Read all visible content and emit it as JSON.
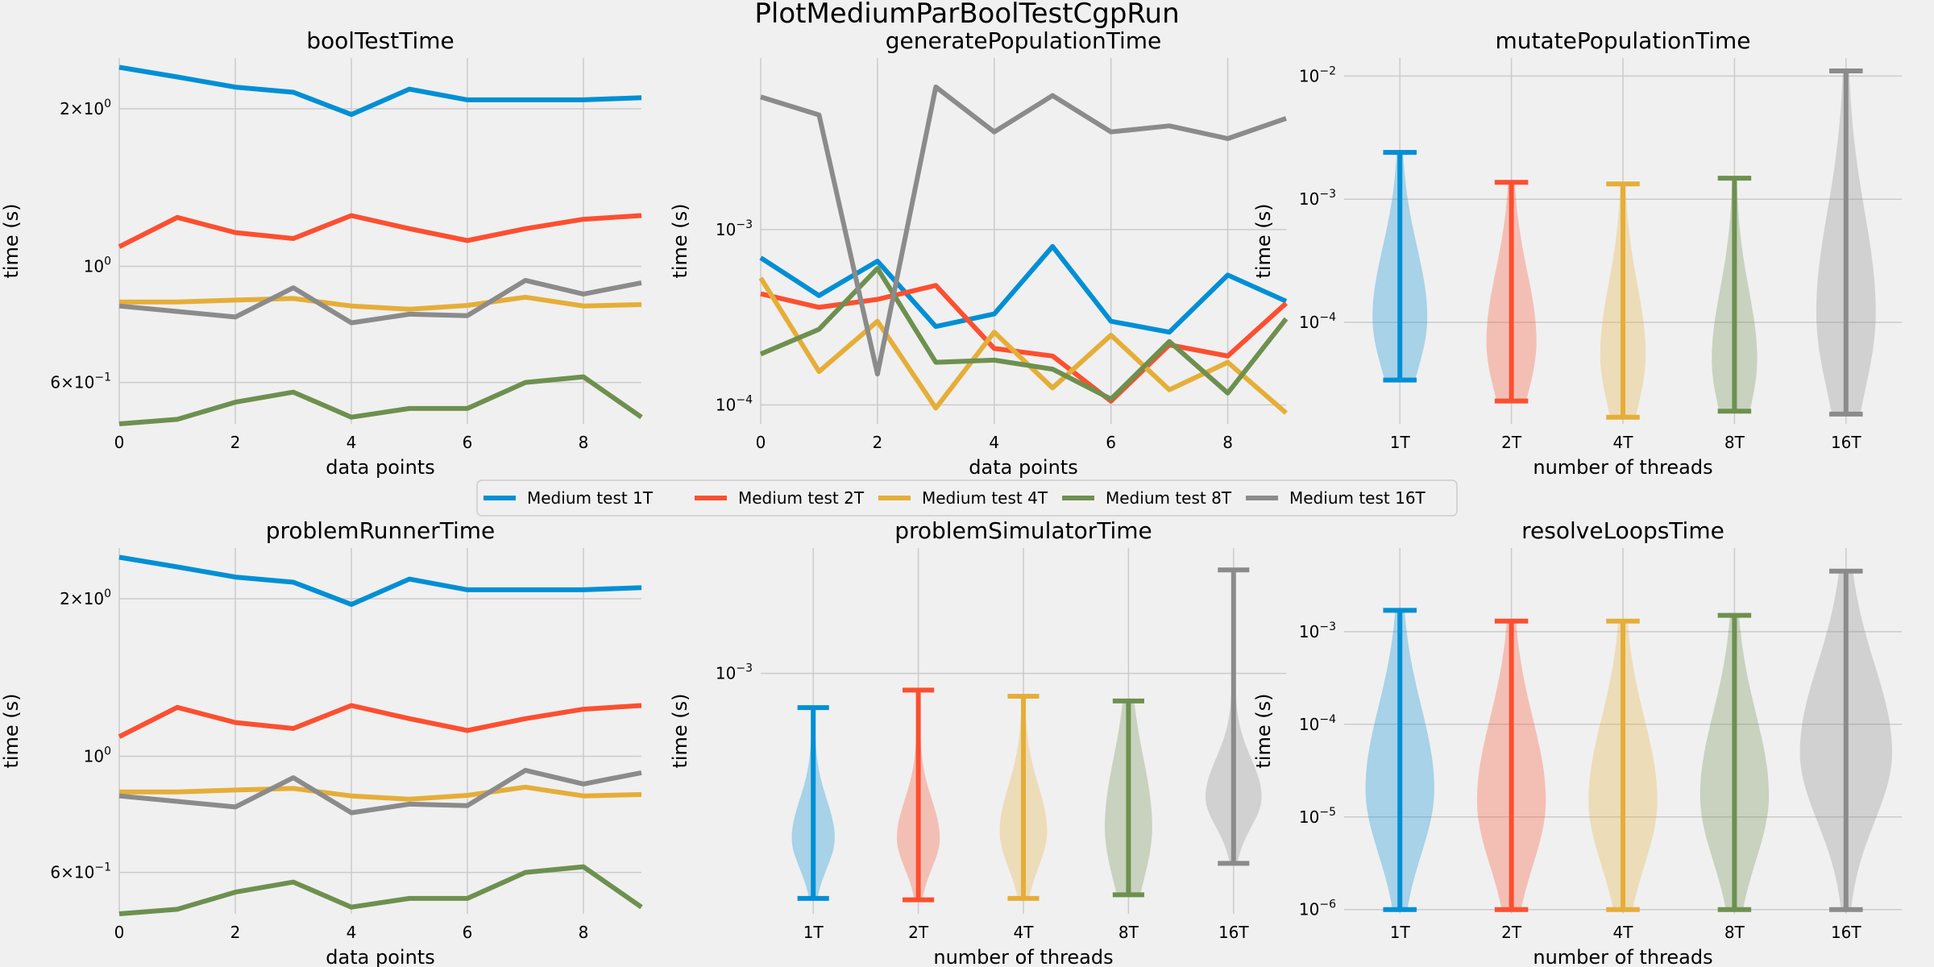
{
  "figure": {
    "suptitle": "PlotMediumParBoolTestCgpRun",
    "legend": {
      "placement": "center",
      "entries": [
        "Medium test 1T",
        "Medium test 2T",
        "Medium test 4T",
        "Medium test 8T",
        "Medium test 16T"
      ],
      "colors": [
        "#008fd5",
        "#fc4f30",
        "#e5ae38",
        "#6d904f",
        "#8b8b8b"
      ]
    }
  },
  "chart_data": [
    {
      "type": "line",
      "title": "boolTestTime",
      "xlabel": "data points",
      "ylabel": "time (s)",
      "scale": "log",
      "xlim": [
        0,
        9
      ],
      "ylim": [
        0.5,
        2.5
      ],
      "xticks": [
        0,
        2,
        4,
        6,
        8
      ],
      "yticks": [
        {
          "v": 0.6,
          "m": "6",
          "e": "−1"
        },
        {
          "v": 1.0,
          "m": "",
          "e": "0"
        },
        {
          "v": 2.0,
          "m": "2",
          "e": "0"
        }
      ],
      "x": [
        0,
        1,
        2,
        3,
        4,
        5,
        6,
        7,
        8,
        9
      ],
      "series": [
        {
          "name": "Medium test 1T",
          "values": [
            2.4,
            2.3,
            2.2,
            2.15,
            1.95,
            2.18,
            2.08,
            2.08,
            2.08,
            2.1
          ]
        },
        {
          "name": "Medium test 2T",
          "values": [
            1.09,
            1.24,
            1.16,
            1.13,
            1.25,
            1.18,
            1.12,
            1.18,
            1.23,
            1.25
          ]
        },
        {
          "name": "Medium test 4T",
          "values": [
            0.855,
            0.855,
            0.862,
            0.868,
            0.84,
            0.828,
            0.842,
            0.873,
            0.84,
            0.845
          ]
        },
        {
          "name": "Medium test 8T",
          "values": [
            0.5,
            0.51,
            0.55,
            0.575,
            0.515,
            0.535,
            0.535,
            0.6,
            0.615,
            0.515
          ]
        },
        {
          "name": "Medium test 16T",
          "values": [
            0.84,
            0.82,
            0.8,
            0.91,
            0.78,
            0.81,
            0.805,
            0.94,
            0.885,
            0.93
          ]
        }
      ]
    },
    {
      "type": "line",
      "title": "generatePopulationTime",
      "xlabel": "data points",
      "ylabel": "time (s)",
      "scale": "log",
      "xlim": [
        0,
        9
      ],
      "ylim": [
        7.8e-05,
        0.0095
      ],
      "xticks": [
        0,
        2,
        4,
        6,
        8
      ],
      "yticks": [
        {
          "v": 0.0001,
          "m": "",
          "e": "−4"
        },
        {
          "v": 0.001,
          "m": "",
          "e": "−3"
        }
      ],
      "x": [
        0,
        1,
        2,
        3,
        4,
        5,
        6,
        7,
        8,
        9
      ],
      "series": [
        {
          "name": "Medium test 1T",
          "values": [
            0.00069,
            0.00042,
            0.00066,
            0.00028,
            0.00033,
            0.0008,
            0.0003,
            0.00026,
            0.00055,
            0.00039
          ]
        },
        {
          "name": "Medium test 2T",
          "values": [
            0.00043,
            0.00036,
            0.0004,
            0.00048,
            0.00021,
            0.00019,
            0.000105,
            0.00022,
            0.00019,
            0.00038
          ]
        },
        {
          "name": "Medium test 4T",
          "values": [
            0.00053,
            0.000155,
            0.0003,
            9.6e-05,
            0.00026,
            0.000125,
            0.00025,
            0.000122,
            0.000175,
            9e-05
          ]
        },
        {
          "name": "Medium test 8T",
          "values": [
            0.000195,
            0.00027,
            0.0006,
            0.000175,
            0.00018,
            0.00016,
            0.000108,
            0.00023,
            0.000117,
            0.00031
          ]
        },
        {
          "name": "Medium test 16T",
          "values": [
            0.0057,
            0.0045,
            0.00015,
            0.0065,
            0.0036,
            0.0058,
            0.0036,
            0.0039,
            0.0033,
            0.0043
          ]
        }
      ]
    },
    {
      "type": "violin",
      "title": "mutatePopulationTime",
      "xlabel": "number of threads",
      "ylabel": "time (s)",
      "scale": "log",
      "ylim": [
        1.5e-05,
        0.014
      ],
      "yticks": [
        {
          "v": 0.0001,
          "m": "",
          "e": "−4"
        },
        {
          "v": 0.001,
          "m": "",
          "e": "−3"
        },
        {
          "v": 0.01,
          "m": "",
          "e": "−2"
        }
      ],
      "categories": [
        "1T",
        "2T",
        "4T",
        "8T",
        "16T"
      ],
      "violins": [
        {
          "min": 3.4e-05,
          "max": 0.0024,
          "center": 0.00011,
          "spread": 0.45,
          "width": 0.55
        },
        {
          "min": 2.3e-05,
          "max": 0.00137,
          "center": 7e-05,
          "spread": 0.45,
          "width": 0.5
        },
        {
          "min": 1.7e-05,
          "max": 0.00133,
          "center": 5.5e-05,
          "spread": 0.45,
          "width": 0.45
        },
        {
          "min": 1.9e-05,
          "max": 0.00148,
          "center": 5e-05,
          "spread": 0.45,
          "width": 0.45
        },
        {
          "min": 1.8e-05,
          "max": 0.011,
          "center": 0.00012,
          "spread": 0.65,
          "width": 0.6
        }
      ]
    },
    {
      "type": "line",
      "title": "problemRunnerTime",
      "xlabel": "data points",
      "ylabel": "time (s)",
      "scale": "log",
      "xlim": [
        0,
        9
      ],
      "ylim": [
        0.5,
        2.5
      ],
      "xticks": [
        0,
        2,
        4,
        6,
        8
      ],
      "yticks": [
        {
          "v": 0.6,
          "m": "6",
          "e": "−1"
        },
        {
          "v": 1.0,
          "m": "",
          "e": "0"
        },
        {
          "v": 2.0,
          "m": "2",
          "e": "0"
        }
      ],
      "x": [
        0,
        1,
        2,
        3,
        4,
        5,
        6,
        7,
        8,
        9
      ],
      "series": [
        {
          "name": "Medium test 1T",
          "values": [
            2.4,
            2.3,
            2.2,
            2.15,
            1.95,
            2.18,
            2.08,
            2.08,
            2.08,
            2.1
          ]
        },
        {
          "name": "Medium test 2T",
          "values": [
            1.09,
            1.24,
            1.16,
            1.13,
            1.25,
            1.18,
            1.12,
            1.18,
            1.23,
            1.25
          ]
        },
        {
          "name": "Medium test 4T",
          "values": [
            0.855,
            0.855,
            0.862,
            0.868,
            0.84,
            0.828,
            0.842,
            0.873,
            0.84,
            0.845
          ]
        },
        {
          "name": "Medium test 8T",
          "values": [
            0.5,
            0.51,
            0.55,
            0.575,
            0.515,
            0.535,
            0.535,
            0.6,
            0.615,
            0.515
          ]
        },
        {
          "name": "Medium test 16T",
          "values": [
            0.84,
            0.82,
            0.8,
            0.91,
            0.78,
            0.81,
            0.805,
            0.94,
            0.885,
            0.93
          ]
        }
      ]
    },
    {
      "type": "violin",
      "title": "problemSimulatorTime",
      "xlabel": "number of threads",
      "ylabel": "time (s)",
      "scale": "log",
      "ylim": [
        0.00016,
        0.0026
      ],
      "yticks": [
        {
          "v": 0.001,
          "m": "",
          "e": "−3"
        }
      ],
      "categories": [
        "1T",
        "2T",
        "4T",
        "8T",
        "16T"
      ],
      "violins": [
        {
          "min": 0.00018,
          "max": 0.00077,
          "center": 0.000285,
          "spread": 0.1,
          "width": 0.45
        },
        {
          "min": 0.000178,
          "max": 0.00088,
          "center": 0.000285,
          "spread": 0.1,
          "width": 0.45
        },
        {
          "min": 0.00018,
          "max": 0.00084,
          "center": 0.0003,
          "spread": 0.12,
          "width": 0.5
        },
        {
          "min": 0.000185,
          "max": 0.00081,
          "center": 0.00031,
          "spread": 0.18,
          "width": 0.5
        },
        {
          "min": 0.000235,
          "max": 0.0022,
          "center": 0.00039,
          "spread": 0.1,
          "width": 0.6
        }
      ]
    },
    {
      "type": "violin",
      "title": "resolveLoopsTime",
      "xlabel": "number of threads",
      "ylabel": "time (s)",
      "scale": "log",
      "ylim": [
        9e-07,
        0.008
      ],
      "yticks": [
        {
          "v": 1e-06,
          "m": "",
          "e": "−6"
        },
        {
          "v": 1e-05,
          "m": "",
          "e": "−5"
        },
        {
          "v": 0.0001,
          "m": "",
          "e": "−4"
        },
        {
          "v": 0.001,
          "m": "",
          "e": "−3"
        }
      ],
      "categories": [
        "1T",
        "2T",
        "4T",
        "8T",
        "16T"
      ],
      "violins": [
        {
          "min": 1e-06,
          "max": 0.0017,
          "center": 2e-05,
          "spread": 0.7,
          "width": 0.7
        },
        {
          "min": 1e-06,
          "max": 0.0013,
          "center": 1.5e-05,
          "spread": 0.7,
          "width": 0.7
        },
        {
          "min": 1e-06,
          "max": 0.0013,
          "center": 1.5e-05,
          "spread": 0.7,
          "width": 0.7
        },
        {
          "min": 1e-06,
          "max": 0.0015,
          "center": 1.7e-05,
          "spread": 0.7,
          "width": 0.7
        },
        {
          "min": 1e-06,
          "max": 0.0045,
          "center": 5e-05,
          "spread": 0.75,
          "width": 0.95
        }
      ]
    }
  ]
}
